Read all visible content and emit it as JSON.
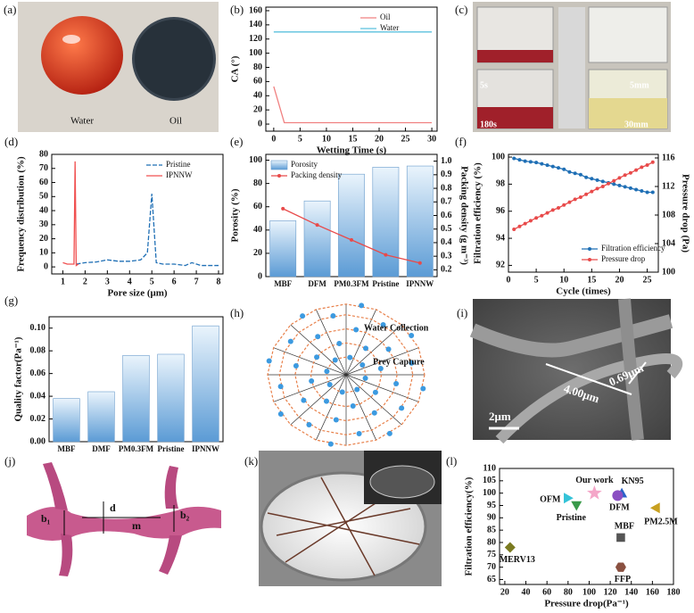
{
  "panels": {
    "a": {
      "label": "(a)",
      "texts": [
        "Water",
        "Oil"
      ]
    },
    "c": {
      "label": "(c)",
      "texts": [
        "5s",
        "5mm",
        "180s",
        "30mm"
      ]
    },
    "h": {
      "label": "(h)",
      "texts": [
        "Water Collection",
        "Prey Capture"
      ]
    },
    "i": {
      "label": "(i)",
      "texts": [
        "4.00μm",
        "0.69μm",
        "2μm"
      ]
    },
    "j": {
      "label": "(j)",
      "texts": [
        "b₁",
        "d",
        "b₂",
        "m"
      ]
    },
    "k": {
      "label": "(k)"
    }
  },
  "chart_data": [
    {
      "label": "(b)",
      "type": "line",
      "xlabel": "Wetting Time (s)",
      "ylabel": "CA (°)",
      "xlim": [
        -1.5,
        31
      ],
      "ylim": [
        -10,
        165
      ],
      "xticks": [
        0,
        5,
        10,
        15,
        20,
        25,
        30
      ],
      "yticks": [
        0,
        20,
        40,
        60,
        80,
        100,
        120,
        140,
        160
      ],
      "legend": "upper right",
      "series": [
        {
          "name": "Oil",
          "color": "#f08080",
          "x": [
            0,
            2,
            30
          ],
          "values": [
            53,
            2,
            2
          ]
        },
        {
          "name": "Water",
          "color": "#5bc0de",
          "x": [
            0,
            30
          ],
          "values": [
            130,
            130
          ]
        }
      ]
    },
    {
      "label": "(d)",
      "type": "line",
      "xlabel": "Pore size (μm)",
      "ylabel": "Frequency distribution (%)",
      "xlim": [
        0.5,
        8.2
      ],
      "ylim": [
        -5,
        80
      ],
      "xticks": [
        1,
        2,
        3,
        4,
        5,
        6,
        7,
        8
      ],
      "yticks": [
        0,
        10,
        20,
        30,
        40,
        50,
        60,
        70,
        80
      ],
      "legend": "upper right",
      "series": [
        {
          "name": "Pristine",
          "color": "#1f6fb5",
          "style": "dashed",
          "x": [
            1.6,
            2,
            2.5,
            3,
            3.5,
            4,
            4.5,
            4.8,
            5,
            5.2,
            5.5,
            6,
            6.5,
            6.8,
            7.2,
            8
          ],
          "values": [
            2,
            3,
            3.5,
            5,
            4,
            4,
            5,
            10,
            52,
            3,
            2,
            2,
            1,
            3,
            1,
            1
          ]
        },
        {
          "name": "IPNNW",
          "color": "#f05050",
          "x": [
            1,
            1.2,
            1.5,
            1.55,
            1.6,
            1.7
          ],
          "values": [
            3,
            2,
            2,
            75,
            1,
            2
          ]
        }
      ]
    },
    {
      "label": "(e)",
      "type": "bar",
      "ylabel": "Porosity (%)",
      "y2label": "Packing density (g m⁻³)",
      "categories": [
        "MBF",
        "DFM",
        "PM0.3FM",
        "Pristine",
        "IPNNW"
      ],
      "ylim": [
        0,
        105
      ],
      "yticks": [
        0,
        20,
        40,
        60,
        80,
        100
      ],
      "y2lim": [
        0.15,
        1.05
      ],
      "y2ticks": [
        0.2,
        0.3,
        0.4,
        0.5,
        0.6,
        0.7,
        0.8,
        0.9,
        {
          "value": 1,
          "label": "1.0"
        }
      ],
      "legend": "upper left",
      "series": [
        {
          "name": "Porosity",
          "color": "#5b9bd5",
          "values": [
            48,
            65,
            88,
            94,
            95
          ]
        },
        {
          "name": "Packing density",
          "type": "line",
          "axis": "y2",
          "color": "#e84a4a",
          "values": [
            0.65,
            0.53,
            0.42,
            0.31,
            0.25
          ]
        }
      ]
    },
    {
      "label": "(f)",
      "type": "line",
      "xlabel": "Cycle  (times)",
      "ylabel": "Filtration efficiency (%)",
      "y2label": "Pressure drop (Pa)",
      "markers": true,
      "xlim": [
        0,
        27
      ],
      "ylim": [
        91.5,
        100.2
      ],
      "y2lim": [
        100,
        116.5
      ],
      "xticks": [
        0,
        5,
        10,
        15,
        20,
        25
      ],
      "yticks": [
        92,
        94,
        96,
        98,
        100
      ],
      "y2ticks": [
        100,
        104,
        108,
        112,
        116
      ],
      "legend": "lower right",
      "x": [
        1,
        2,
        3,
        4,
        5,
        6,
        7,
        8,
        9,
        10,
        11,
        12,
        13,
        14,
        15,
        16,
        17,
        18,
        19,
        20,
        21,
        22,
        23,
        24,
        25,
        26
      ],
      "series": [
        {
          "name": "Filtration efficiency",
          "color": "#1f6fb5",
          "values": [
            99.9,
            99.8,
            99.7,
            99.65,
            99.6,
            99.5,
            99.4,
            99.3,
            99.2,
            99.1,
            98.9,
            98.8,
            98.7,
            98.5,
            98.4,
            98.3,
            98.2,
            98.1,
            98.0,
            97.9,
            97.8,
            97.7,
            97.6,
            97.5,
            97.4,
            97.4
          ]
        },
        {
          "name": "Pressure drop",
          "color": "#e84a4a",
          "axis": "y2",
          "values": [
            106.0,
            106.4,
            106.8,
            107.2,
            107.6,
            107.9,
            108.3,
            108.7,
            109.0,
            109.4,
            109.8,
            110.2,
            110.5,
            110.9,
            111.3,
            111.7,
            112.0,
            112.4,
            112.8,
            113.2,
            113.6,
            113.9,
            114.3,
            114.7,
            115.0,
            115.4
          ]
        }
      ]
    },
    {
      "label": "(g)",
      "type": "bar",
      "ylabel": "Quality factor(Pa⁻¹)",
      "color": "#5b9bd5",
      "categories": [
        "MBF",
        "DMF",
        "PM0.3FM",
        "Pristine",
        "IPNNW"
      ],
      "values": [
        0.038,
        0.044,
        0.076,
        0.077,
        0.102
      ],
      "ylim": [
        0,
        0.11
      ],
      "yticks": [
        {
          "value": 0,
          "label": "0.00"
        },
        {
          "value": 0.02,
          "label": "0.02"
        },
        {
          "value": 0.04,
          "label": "0.04"
        },
        {
          "value": 0.06,
          "label": "0.06"
        },
        {
          "value": 0.08,
          "label": "0.08"
        },
        {
          "value": 0.1,
          "label": "0.10"
        }
      ]
    },
    {
      "label": "(l)",
      "type": "scatter",
      "xlabel": "Pressure drop(Pa⁻¹)",
      "ylabel": "Filtration efficiency(%)",
      "xlim": [
        15,
        180
      ],
      "ylim": [
        63,
        110
      ],
      "xticks": [
        20,
        40,
        60,
        80,
        100,
        120,
        140,
        160,
        180
      ],
      "yticks": [
        65,
        70,
        75,
        80,
        85,
        90,
        95,
        100,
        105,
        110
      ],
      "series": [
        {
          "name": "Our work",
          "color": "#f4a6c8",
          "marker": "star",
          "x": [
            105
          ],
          "values": [
            100
          ]
        },
        {
          "name": "KN95",
          "color": "#2a62c9",
          "marker": "triangle",
          "x": [
            131
          ],
          "values": [
            100
          ]
        },
        {
          "name": "DFM",
          "color": "#8a4fc2",
          "marker": "circle",
          "x": [
            127
          ],
          "values": [
            99
          ]
        },
        {
          "name": "OFM",
          "color": "#34c3d8",
          "marker": "triangle-right",
          "x": [
            80
          ],
          "values": [
            98
          ]
        },
        {
          "name": "Pristine",
          "color": "#3a9a4a",
          "marker": "triangle-down",
          "x": [
            88
          ],
          "values": [
            95
          ]
        },
        {
          "name": "PM2.5M",
          "color": "#c8a020",
          "marker": "triangle-left",
          "x": [
            163
          ],
          "values": [
            94
          ]
        },
        {
          "name": "MBF",
          "color": "#555555",
          "marker": "square",
          "x": [
            130
          ],
          "values": [
            82
          ]
        },
        {
          "name": "MERV13",
          "color": "#7a7a20",
          "marker": "diamond",
          "x": [
            25
          ],
          "values": [
            78
          ]
        },
        {
          "name": "FFP",
          "color": "#8a5040",
          "marker": "hexagon",
          "x": [
            130
          ],
          "values": [
            70
          ]
        }
      ]
    }
  ]
}
